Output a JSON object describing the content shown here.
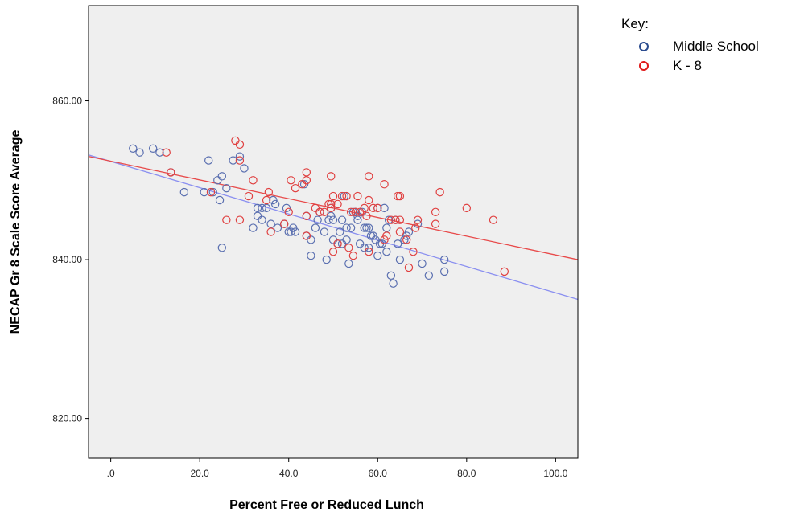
{
  "chart_data": {
    "type": "scatter",
    "xlabel": "Percent Free or Reduced Lunch",
    "ylabel": "NECAP Gr 8 Scale Score Average",
    "xlim": [
      -5,
      105
    ],
    "ylim": [
      815,
      872
    ],
    "x_ticks": [
      0,
      20,
      40,
      60,
      80,
      100
    ],
    "x_tick_labels": [
      ".0",
      "20.0",
      "40.0",
      "60.0",
      "80.0",
      "100.0"
    ],
    "y_ticks": [
      820,
      840,
      860
    ],
    "y_tick_labels": [
      "820.00",
      "840.00",
      "860.00"
    ],
    "background": "#efefef",
    "grid": false,
    "legend": {
      "title": "Key:",
      "placement": "right",
      "items": [
        {
          "label": "Middle School",
          "color": "#2b4c8f"
        },
        {
          "label": "K - 8",
          "color": "#e01b1b"
        }
      ]
    },
    "series": [
      {
        "name": "Middle School",
        "color": "#5a6fb0",
        "fit_line": {
          "color": "#8a8ff0",
          "x": [
            -5,
            105
          ],
          "y": [
            853.2,
            835.0
          ]
        },
        "points": [
          [
            5,
            854
          ],
          [
            6.5,
            853.5
          ],
          [
            9.5,
            854
          ],
          [
            11,
            853.5
          ],
          [
            13.5,
            851
          ],
          [
            16.5,
            848.5
          ],
          [
            21,
            848.5
          ],
          [
            22,
            852.5
          ],
          [
            23,
            848.5
          ],
          [
            24,
            850
          ],
          [
            24.5,
            847.5
          ],
          [
            25,
            850.5
          ],
          [
            25,
            841.5
          ],
          [
            26,
            849
          ],
          [
            27.5,
            852.5
          ],
          [
            29,
            853
          ],
          [
            30,
            851.5
          ],
          [
            32,
            844
          ],
          [
            33,
            846.5
          ],
          [
            33,
            845.5
          ],
          [
            34,
            846.5
          ],
          [
            34,
            845
          ],
          [
            35,
            846.5
          ],
          [
            36,
            844.5
          ],
          [
            36.5,
            847.5
          ],
          [
            37,
            847
          ],
          [
            37.5,
            844
          ],
          [
            39,
            844.5
          ],
          [
            39.5,
            846.5
          ],
          [
            40,
            843.5
          ],
          [
            40.5,
            843.5
          ],
          [
            41,
            844
          ],
          [
            41.5,
            843.5
          ],
          [
            43.5,
            849.5
          ],
          [
            44,
            845.5
          ],
          [
            44,
            843
          ],
          [
            45,
            840.5
          ],
          [
            45,
            842.5
          ],
          [
            46,
            844
          ],
          [
            46.5,
            845
          ],
          [
            47,
            846
          ],
          [
            48,
            843.5
          ],
          [
            48.5,
            840
          ],
          [
            49,
            845
          ],
          [
            49.5,
            845.5
          ],
          [
            49.5,
            846.5
          ],
          [
            50,
            845
          ],
          [
            50,
            842.5
          ],
          [
            51,
            842
          ],
          [
            51.5,
            843.5
          ],
          [
            52,
            842
          ],
          [
            52,
            845
          ],
          [
            52.5,
            848
          ],
          [
            53,
            844
          ],
          [
            53,
            842.5
          ],
          [
            53.5,
            839.5
          ],
          [
            54,
            844
          ],
          [
            54.5,
            846
          ],
          [
            55,
            846
          ],
          [
            55.5,
            845.5
          ],
          [
            55.5,
            845
          ],
          [
            56,
            842
          ],
          [
            56.5,
            846
          ],
          [
            57,
            844
          ],
          [
            57,
            841.5
          ],
          [
            57.5,
            844
          ],
          [
            58,
            844
          ],
          [
            58,
            841.5
          ],
          [
            58.5,
            843
          ],
          [
            59,
            843
          ],
          [
            59.5,
            842.5
          ],
          [
            60,
            846.5
          ],
          [
            60,
            840.5
          ],
          [
            60.5,
            842
          ],
          [
            61,
            842
          ],
          [
            61.5,
            846.5
          ],
          [
            62,
            844
          ],
          [
            62,
            841
          ],
          [
            62.5,
            845
          ],
          [
            63,
            838
          ],
          [
            63.5,
            837
          ],
          [
            64,
            845
          ],
          [
            64.5,
            842
          ],
          [
            65,
            840
          ],
          [
            66,
            842.5
          ],
          [
            66.5,
            843
          ],
          [
            67,
            843.5
          ],
          [
            69,
            844.5
          ],
          [
            70,
            839.5
          ],
          [
            71.5,
            838
          ],
          [
            75,
            840
          ],
          [
            75,
            838.5
          ]
        ]
      },
      {
        "name": "K - 8",
        "color": "#e04040",
        "fit_line": {
          "color": "#e84a4a",
          "x": [
            -5,
            105
          ],
          "y": [
            853.0,
            840.0
          ]
        },
        "points": [
          [
            12.5,
            853.5
          ],
          [
            13.5,
            851
          ],
          [
            22.5,
            848.5
          ],
          [
            26,
            845
          ],
          [
            28,
            855
          ],
          [
            29,
            854.5
          ],
          [
            29,
            852.5
          ],
          [
            29,
            845
          ],
          [
            31,
            848
          ],
          [
            32,
            850
          ],
          [
            35,
            847.5
          ],
          [
            35.5,
            848.5
          ],
          [
            36,
            843.5
          ],
          [
            39,
            844.5
          ],
          [
            40,
            846
          ],
          [
            40.5,
            850
          ],
          [
            41.5,
            849
          ],
          [
            43,
            849.5
          ],
          [
            44,
            851
          ],
          [
            44,
            850
          ],
          [
            44,
            845.5
          ],
          [
            44,
            843
          ],
          [
            46,
            846.5
          ],
          [
            47,
            846
          ],
          [
            48,
            846
          ],
          [
            49,
            847
          ],
          [
            49.5,
            850.5
          ],
          [
            49.5,
            847
          ],
          [
            49.5,
            846.5
          ],
          [
            50,
            848
          ],
          [
            50,
            841
          ],
          [
            51,
            847
          ],
          [
            51,
            842
          ],
          [
            52,
            848
          ],
          [
            53,
            848
          ],
          [
            53.5,
            841.5
          ],
          [
            54,
            846
          ],
          [
            54.5,
            840.5
          ],
          [
            55,
            846
          ],
          [
            55.5,
            848
          ],
          [
            56,
            846
          ],
          [
            57,
            846.5
          ],
          [
            57.5,
            845.5
          ],
          [
            58,
            850.5
          ],
          [
            58,
            847.5
          ],
          [
            58,
            841
          ],
          [
            59,
            846.5
          ],
          [
            60,
            846.5
          ],
          [
            61.5,
            849.5
          ],
          [
            61.5,
            842.5
          ],
          [
            62,
            843
          ],
          [
            63,
            845
          ],
          [
            64,
            845
          ],
          [
            64.5,
            848
          ],
          [
            65,
            848
          ],
          [
            65,
            845
          ],
          [
            65,
            843.5
          ],
          [
            66.5,
            842.5
          ],
          [
            67,
            839
          ],
          [
            68,
            841
          ],
          [
            68.5,
            844
          ],
          [
            69,
            845
          ],
          [
            73,
            846
          ],
          [
            73,
            844.5
          ],
          [
            74,
            848.5
          ],
          [
            80,
            846.5
          ],
          [
            86,
            845
          ],
          [
            88.5,
            838.5
          ]
        ]
      }
    ]
  }
}
